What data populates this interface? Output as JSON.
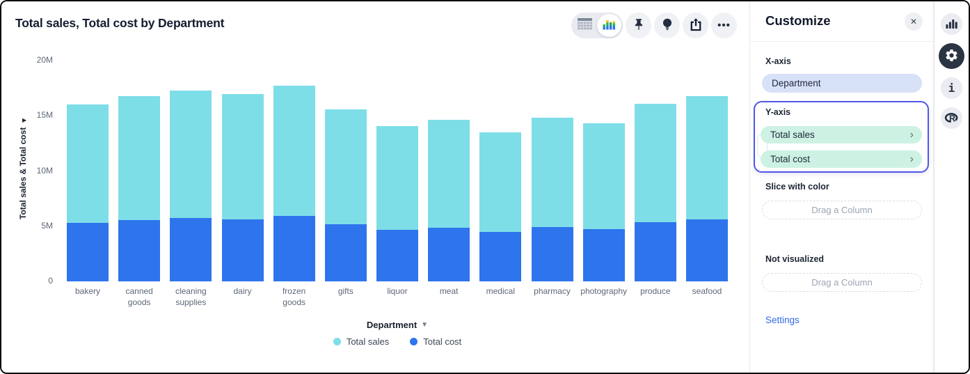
{
  "title": "Total sales, Total cost by Department",
  "toolbar": {
    "icons": [
      "table-view",
      "chart-view",
      "pin",
      "insight-bulb",
      "share",
      "more"
    ],
    "active_view": "chart-view"
  },
  "chart_data": {
    "type": "bar",
    "stacked": true,
    "title": "Total sales, Total cost by Department",
    "categories": [
      "bakery",
      "canned goods",
      "cleaning supplies",
      "dairy",
      "frozen goods",
      "gifts",
      "liquor",
      "meat",
      "medical",
      "pharmacy",
      "photography",
      "produce",
      "seafood"
    ],
    "series": [
      {
        "name": "Total cost",
        "color": "#2e74ed",
        "values": [
          5.3,
          5.55,
          5.75,
          5.6,
          5.9,
          5.15,
          4.65,
          4.85,
          4.5,
          4.9,
          4.75,
          5.35,
          5.6
        ]
      },
      {
        "name": "Total sales",
        "color": "#7edee7",
        "values": [
          10.7,
          11.25,
          11.55,
          11.4,
          11.8,
          10.45,
          9.45,
          9.8,
          9.0,
          9.9,
          9.55,
          10.75,
          11.2
        ]
      }
    ],
    "stack_order_bottom_to_top": [
      "Total cost",
      "Total sales"
    ],
    "ylabel": "Total sales & Total cost",
    "xlabel": "Department",
    "ylim": [
      0,
      20
    ],
    "yticks": [
      {
        "value": 0,
        "label": "0"
      },
      {
        "value": 5,
        "label": "5M"
      },
      {
        "value": 10,
        "label": "10M"
      },
      {
        "value": 15,
        "label": "15M"
      },
      {
        "value": 20,
        "label": "20M"
      }
    ],
    "grid": false,
    "legend_position": "bottom",
    "legend": [
      {
        "label": "Total sales",
        "color": "#7edee7"
      },
      {
        "label": "Total cost",
        "color": "#2e74ed"
      }
    ]
  },
  "customize": {
    "header": "Customize",
    "sections": {
      "x_axis": {
        "label": "X-axis",
        "value": "Department"
      },
      "y_axis": {
        "label": "Y-axis",
        "items": [
          {
            "label": "Total sales"
          },
          {
            "label": "Total cost"
          }
        ]
      },
      "slice": {
        "label": "Slice with color",
        "placeholder": "Drag a Column"
      },
      "not_visualized": {
        "label": "Not visualized",
        "placeholder": "Drag a Column"
      }
    },
    "settings_link": "Settings"
  },
  "rail": {
    "items": [
      "chart",
      "settings-gear",
      "info",
      "r-logo"
    ],
    "active": "settings-gear"
  },
  "icons": {
    "close": "✕",
    "chevron_right": "›",
    "dropdown_arrow": "▼",
    "y_axis_arrow": "▶",
    "more_dots": "•••"
  },
  "colors": {
    "sales": "#7edee7",
    "cost": "#2e74ed",
    "accent_border": "#5156e8",
    "pill_blue": "#d7e1f8",
    "pill_mint": "#cdf2e4",
    "link": "#2f6be4"
  }
}
